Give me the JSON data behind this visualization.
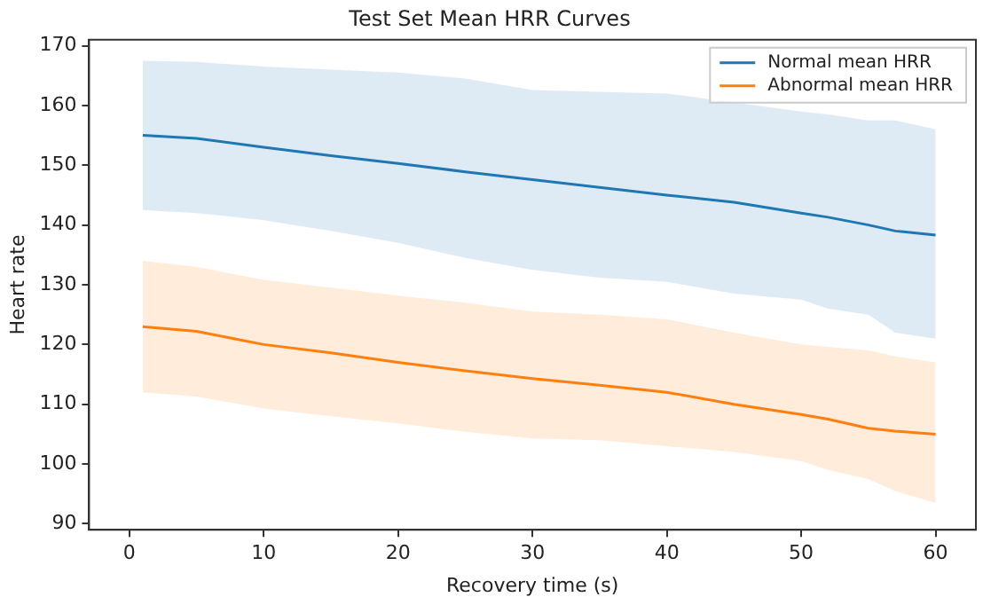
{
  "chart_data": {
    "type": "line",
    "title": "Test Set Mean HRR Curves",
    "xlabel": "Recovery time (s)",
    "ylabel": "Heart rate",
    "xlim": [
      -3,
      63
    ],
    "xticks": [
      0,
      10,
      20,
      30,
      40,
      50,
      60
    ],
    "ylim": [
      89,
      171
    ],
    "yticks": [
      90,
      100,
      110,
      120,
      130,
      140,
      150,
      160,
      170
    ],
    "grid": false,
    "legend": "top right",
    "marker": "none",
    "line_style": "solid",
    "series": [
      {
        "name": "Normal mean HRR",
        "color": "#1f77b4",
        "x": [
          1,
          5,
          10,
          15,
          20,
          25,
          30,
          35,
          40,
          45,
          50,
          52,
          55,
          57,
          60
        ],
        "values": [
          155,
          154.5,
          153,
          151.6,
          150.3,
          148.9,
          147.6,
          146.3,
          145,
          143.8,
          142,
          141.3,
          140,
          139,
          138.3
        ],
        "upper": [
          167.5,
          167.3,
          166.5,
          166,
          165.5,
          164.5,
          162.6,
          162.3,
          162,
          160.5,
          159,
          158.5,
          157.5,
          157.5,
          156
        ],
        "lower": [
          142.5,
          142,
          140.8,
          139,
          137,
          134.5,
          132.5,
          131.2,
          130.5,
          128.5,
          127.5,
          126,
          125,
          122,
          121
        ]
      },
      {
        "name": "Abnormal mean HRR",
        "color": "#ff7f0e",
        "x": [
          1,
          5,
          10,
          15,
          20,
          25,
          30,
          35,
          40,
          45,
          50,
          52,
          55,
          57,
          60
        ],
        "values": [
          123,
          122.2,
          120,
          118.6,
          117,
          115.6,
          114.3,
          113.2,
          112,
          110,
          108.3,
          107.5,
          106,
          105.5,
          105
        ],
        "upper": [
          134,
          133,
          130.8,
          129.5,
          128.2,
          127,
          125.5,
          125,
          124.2,
          122,
          120,
          119.6,
          119,
          118,
          117
        ],
        "lower": [
          112,
          111.3,
          109.3,
          108,
          106.8,
          105.4,
          104.3,
          104,
          103,
          102,
          100.5,
          99,
          97.5,
          95.5,
          93.5
        ]
      }
    ]
  }
}
